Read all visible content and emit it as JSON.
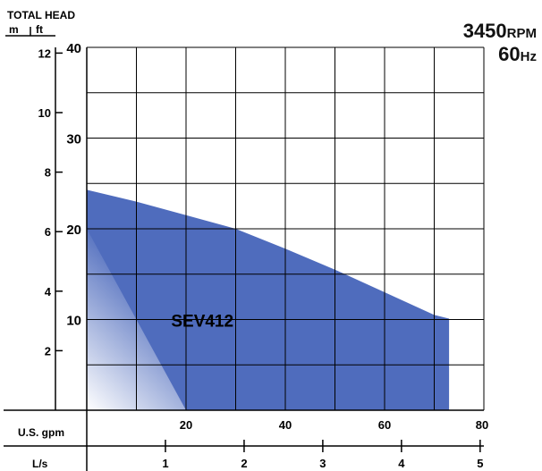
{
  "header": {
    "title": "TOTAL HEAD",
    "unit_m": "m",
    "unit_ft": "ft",
    "speed_value": "3450",
    "speed_unit": "RPM",
    "freq_value": "60",
    "freq_unit": "Hz"
  },
  "colors": {
    "curve_fill": "#4f6cbd",
    "curve_fill_light": "#ffffff",
    "grid": "#000000",
    "curve_label": "#ffffff"
  },
  "chart_data": {
    "type": "area",
    "title": "",
    "xlabel": "U.S. gpm",
    "ylabel": "TOTAL HEAD",
    "xlim": [
      0,
      80
    ],
    "ylim_ft": [
      0,
      40
    ],
    "ylim_m": [
      0,
      12.19
    ],
    "grid": true,
    "x_ticks": [
      20,
      40,
      60,
      80
    ],
    "x_gridlines": [
      0,
      10,
      20,
      30,
      40,
      50,
      60,
      70,
      80
    ],
    "y_ticks_ft": [
      10,
      20,
      30,
      40
    ],
    "y_gridlines_ft": [
      0,
      5,
      10,
      15,
      20,
      25,
      30,
      35,
      40
    ],
    "y_ticks_m": [
      2,
      4,
      6,
      8,
      10,
      12
    ],
    "secondary_x": {
      "label": "L/s",
      "ticks": [
        1,
        2,
        3,
        4,
        5
      ],
      "gpm_per_unit": 15.85
    },
    "series": [
      {
        "name": "SEV412",
        "x": [
          0,
          10,
          20,
          30,
          40,
          50,
          60,
          70,
          73
        ],
        "y": [
          24.3,
          23.0,
          21.5,
          20.0,
          17.8,
          15.5,
          13.0,
          10.5,
          10.1
        ]
      }
    ]
  }
}
